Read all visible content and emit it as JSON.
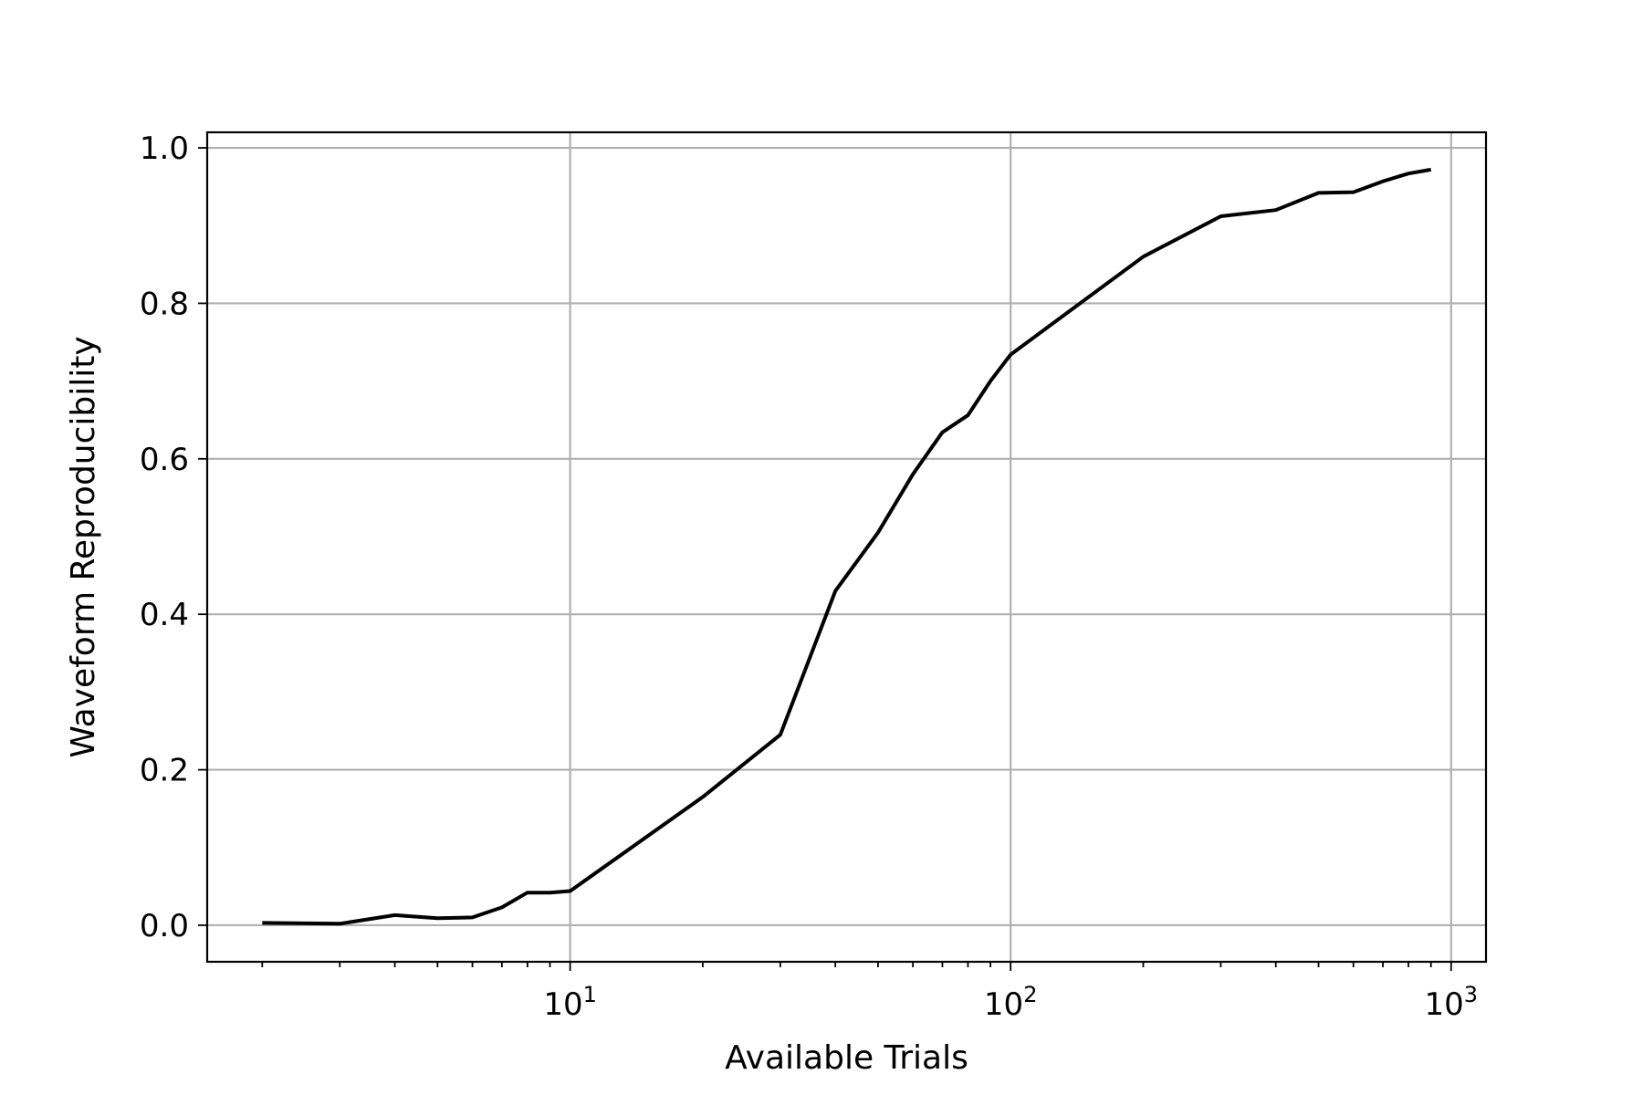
{
  "chart_data": {
    "type": "line",
    "title": "",
    "xlabel": "Available Trials",
    "ylabel": "Waveform Reproducibility",
    "xscale": "log",
    "xlim": [
      1.5,
      1200
    ],
    "ylim": [
      -0.047,
      1.02
    ],
    "grid": true,
    "legend": "none",
    "x_ticks": [
      {
        "value": 10,
        "base": "10",
        "exp": "1"
      },
      {
        "value": 100,
        "base": "10",
        "exp": "2"
      },
      {
        "value": 1000,
        "base": "10",
        "exp": "3"
      }
    ],
    "y_ticks": [
      {
        "value": 0.0,
        "label": "0.0"
      },
      {
        "value": 0.2,
        "label": "0.2"
      },
      {
        "value": 0.4,
        "label": "0.4"
      },
      {
        "value": 0.6,
        "label": "0.6"
      },
      {
        "value": 0.8,
        "label": "0.8"
      },
      {
        "value": 1.0,
        "label": "1.0"
      }
    ],
    "series": [
      {
        "color": "#000000",
        "x": [
          2,
          3,
          4,
          5,
          6,
          7,
          8,
          9,
          10,
          20,
          30,
          40,
          50,
          60,
          70,
          80,
          90,
          100,
          200,
          300,
          400,
          500,
          600,
          700,
          800,
          900
        ],
        "y": [
          0.003,
          0.002,
          0.013,
          0.009,
          0.01,
          0.023,
          0.042,
          0.042,
          0.044,
          0.165,
          0.245,
          0.43,
          0.505,
          0.58,
          0.634,
          0.656,
          0.7,
          0.734,
          0.86,
          0.912,
          0.92,
          0.942,
          0.943,
          0.957,
          0.967,
          0.972
        ]
      }
    ]
  }
}
